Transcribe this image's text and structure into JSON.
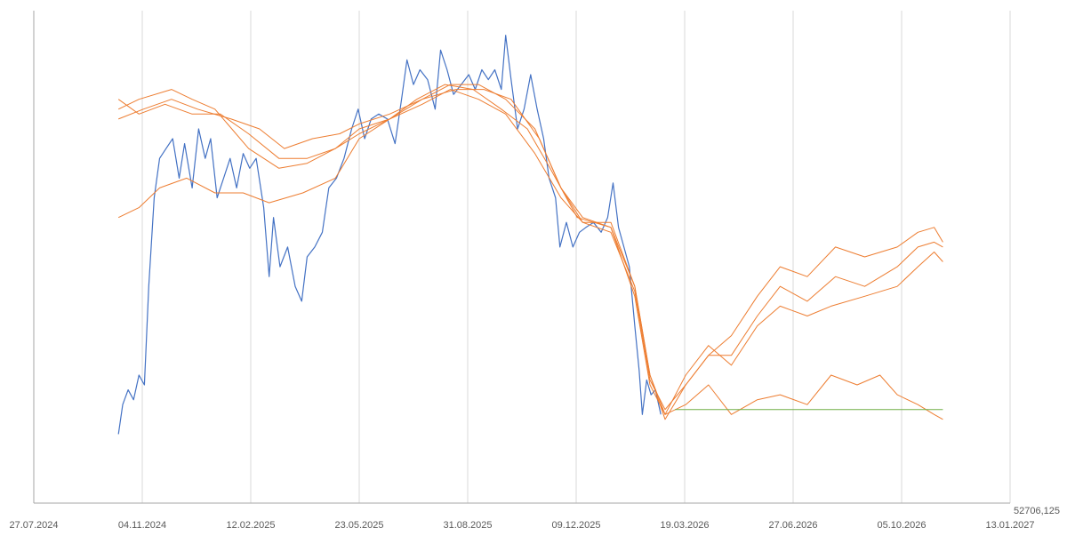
{
  "chart_data": {
    "type": "line",
    "title": "",
    "xlabel": "",
    "ylabel": "",
    "grid": "vertical",
    "legend": "none",
    "x_axis": {
      "type": "date",
      "min": "27.07.2024",
      "max": "13.01.2027",
      "ticks": [
        "27.07.2024",
        "04.11.2024",
        "12.02.2025",
        "23.05.2025",
        "31.08.2025",
        "09.12.2025",
        "19.03.2026",
        "27.06.2026",
        "05.10.2026",
        "13.01.2027"
      ],
      "extra_label": "52706,125"
    },
    "y_axis": {
      "range": [
        0,
        100
      ],
      "visible": false
    },
    "colors": {
      "historical": "#4472c4",
      "forecast": "#ed7d31",
      "flat": "#70ad47"
    },
    "series": [
      {
        "role": "historical",
        "color": "#4472c4",
        "points": [
          [
            "2024-10-13",
            14
          ],
          [
            "2024-10-17",
            20
          ],
          [
            "2024-10-22",
            23
          ],
          [
            "2024-10-27",
            21
          ],
          [
            "2024-11-01",
            26
          ],
          [
            "2024-11-06",
            24
          ],
          [
            "2024-11-10",
            44
          ],
          [
            "2024-11-15",
            62
          ],
          [
            "2024-11-20",
            70
          ],
          [
            "2024-11-26",
            72
          ],
          [
            "2024-12-02",
            74
          ],
          [
            "2024-12-08",
            66
          ],
          [
            "2024-12-13",
            73
          ],
          [
            "2024-12-20",
            64
          ],
          [
            "2024-12-26",
            76
          ],
          [
            "2025-01-01",
            70
          ],
          [
            "2025-01-06",
            74
          ],
          [
            "2025-01-12",
            62
          ],
          [
            "2025-01-18",
            66
          ],
          [
            "2025-01-24",
            70
          ],
          [
            "2025-01-30",
            64
          ],
          [
            "2025-02-05",
            71
          ],
          [
            "2025-02-11",
            68
          ],
          [
            "2025-02-17",
            70
          ],
          [
            "2025-02-24",
            60
          ],
          [
            "2025-03-01",
            46
          ],
          [
            "2025-03-05",
            58
          ],
          [
            "2025-03-11",
            48
          ],
          [
            "2025-03-18",
            52
          ],
          [
            "2025-03-25",
            44
          ],
          [
            "2025-03-31",
            41
          ],
          [
            "2025-04-05",
            50
          ],
          [
            "2025-04-12",
            52
          ],
          [
            "2025-04-19",
            55
          ],
          [
            "2025-04-25",
            64
          ],
          [
            "2025-05-02",
            66
          ],
          [
            "2025-05-09",
            70
          ],
          [
            "2025-05-16",
            76
          ],
          [
            "2025-05-22",
            80
          ],
          [
            "2025-05-28",
            74
          ],
          [
            "2025-06-03",
            78
          ],
          [
            "2025-06-10",
            79
          ],
          [
            "2025-06-18",
            78
          ],
          [
            "2025-06-25",
            73
          ],
          [
            "2025-07-01",
            82
          ],
          [
            "2025-07-06",
            90
          ],
          [
            "2025-07-12",
            85
          ],
          [
            "2025-07-18",
            88
          ],
          [
            "2025-07-25",
            86
          ],
          [
            "2025-08-01",
            80
          ],
          [
            "2025-08-06",
            92
          ],
          [
            "2025-08-12",
            88
          ],
          [
            "2025-08-18",
            83
          ],
          [
            "2025-08-25",
            85
          ],
          [
            "2025-09-01",
            87
          ],
          [
            "2025-09-07",
            84
          ],
          [
            "2025-09-13",
            88
          ],
          [
            "2025-09-19",
            86
          ],
          [
            "2025-09-25",
            88
          ],
          [
            "2025-10-01",
            84
          ],
          [
            "2025-10-05",
            95
          ],
          [
            "2025-10-10",
            86
          ],
          [
            "2025-10-16",
            76
          ],
          [
            "2025-10-22",
            80
          ],
          [
            "2025-10-28",
            87
          ],
          [
            "2025-11-03",
            80
          ],
          [
            "2025-11-09",
            74
          ],
          [
            "2025-11-14",
            66
          ],
          [
            "2025-11-20",
            62
          ],
          [
            "2025-11-24",
            52
          ],
          [
            "2025-11-30",
            57
          ],
          [
            "2025-12-06",
            52
          ],
          [
            "2025-12-12",
            55
          ],
          [
            "2025-12-18",
            56
          ],
          [
            "2025-12-25",
            57
          ],
          [
            "2026-01-01",
            55
          ],
          [
            "2026-01-07",
            58
          ],
          [
            "2026-01-12",
            65
          ],
          [
            "2026-01-17",
            56
          ],
          [
            "2026-01-22",
            52
          ],
          [
            "2026-01-27",
            48
          ],
          [
            "2026-02-01",
            36
          ],
          [
            "2026-02-05",
            27
          ],
          [
            "2026-02-08",
            18
          ],
          [
            "2026-02-12",
            25
          ],
          [
            "2026-02-16",
            22
          ],
          [
            "2026-02-20",
            23
          ],
          [
            "2026-02-25",
            18
          ]
        ]
      },
      {
        "role": "forecast",
        "color": "#ed7d31",
        "points": [
          [
            "2024-10-13",
            58
          ],
          [
            "2024-11-01",
            60
          ],
          [
            "2024-11-20",
            64
          ],
          [
            "2024-12-15",
            66
          ],
          [
            "2025-01-10",
            63
          ],
          [
            "2025-02-05",
            63
          ],
          [
            "2025-03-01",
            61
          ],
          [
            "2025-04-01",
            63
          ],
          [
            "2025-05-01",
            66
          ],
          [
            "2025-05-23",
            74
          ],
          [
            "2025-06-20",
            78
          ],
          [
            "2025-07-15",
            82
          ],
          [
            "2025-08-10",
            85
          ],
          [
            "2025-09-05",
            84
          ],
          [
            "2025-10-01",
            80
          ],
          [
            "2025-10-25",
            76
          ],
          [
            "2025-11-15",
            68
          ],
          [
            "2025-12-10",
            58
          ],
          [
            "2026-01-10",
            56
          ],
          [
            "2026-02-01",
            42
          ],
          [
            "2026-02-15",
            24
          ],
          [
            "2026-03-01",
            18
          ],
          [
            "2026-03-20",
            20
          ],
          [
            "2026-04-10",
            24
          ],
          [
            "2026-05-01",
            18
          ],
          [
            "2026-05-25",
            21
          ],
          [
            "2026-06-15",
            22
          ],
          [
            "2026-07-10",
            20
          ],
          [
            "2026-08-01",
            26
          ],
          [
            "2026-08-25",
            24
          ],
          [
            "2026-09-15",
            26
          ],
          [
            "2026-10-01",
            22
          ],
          [
            "2026-10-20",
            20
          ],
          [
            "2026-11-04",
            18
          ],
          [
            "2026-11-12",
            17
          ]
        ]
      },
      {
        "role": "forecast",
        "color": "#ed7d31",
        "points": [
          [
            "2024-10-13",
            82
          ],
          [
            "2024-11-01",
            79
          ],
          [
            "2024-11-25",
            81
          ],
          [
            "2024-12-20",
            79
          ],
          [
            "2025-01-15",
            79
          ],
          [
            "2025-02-10",
            75
          ],
          [
            "2025-03-10",
            70
          ],
          [
            "2025-04-05",
            70
          ],
          [
            "2025-05-01",
            72
          ],
          [
            "2025-05-23",
            76
          ],
          [
            "2025-06-20",
            78
          ],
          [
            "2025-07-20",
            82
          ],
          [
            "2025-08-15",
            85
          ],
          [
            "2025-09-10",
            85
          ],
          [
            "2025-10-05",
            82
          ],
          [
            "2025-11-01",
            76
          ],
          [
            "2025-11-25",
            64
          ],
          [
            "2025-12-15",
            57
          ],
          [
            "2026-01-10",
            57
          ],
          [
            "2026-02-01",
            44
          ],
          [
            "2026-02-15",
            26
          ],
          [
            "2026-03-01",
            18
          ],
          [
            "2026-03-20",
            26
          ],
          [
            "2026-04-10",
            32
          ],
          [
            "2026-05-01",
            28
          ],
          [
            "2026-05-25",
            36
          ],
          [
            "2026-06-15",
            40
          ],
          [
            "2026-07-10",
            38
          ],
          [
            "2026-08-01",
            40
          ],
          [
            "2026-09-01",
            42
          ],
          [
            "2026-10-01",
            44
          ],
          [
            "2026-10-20",
            48
          ],
          [
            "2026-11-04",
            51
          ],
          [
            "2026-11-12",
            49
          ]
        ]
      },
      {
        "role": "forecast",
        "color": "#ed7d31",
        "points": [
          [
            "2024-10-13",
            78
          ],
          [
            "2024-11-05",
            80
          ],
          [
            "2024-12-01",
            82
          ],
          [
            "2024-12-25",
            80
          ],
          [
            "2025-01-25",
            78
          ],
          [
            "2025-02-20",
            76
          ],
          [
            "2025-03-15",
            72
          ],
          [
            "2025-04-10",
            74
          ],
          [
            "2025-05-05",
            75
          ],
          [
            "2025-05-23",
            77
          ],
          [
            "2025-06-20",
            79
          ],
          [
            "2025-07-20",
            82
          ],
          [
            "2025-08-20",
            84
          ],
          [
            "2025-09-15",
            84
          ],
          [
            "2025-10-10",
            82
          ],
          [
            "2025-11-05",
            74
          ],
          [
            "2025-11-25",
            64
          ],
          [
            "2025-12-15",
            58
          ],
          [
            "2026-01-10",
            56
          ],
          [
            "2026-02-01",
            44
          ],
          [
            "2026-02-15",
            26
          ],
          [
            "2026-03-01",
            17
          ],
          [
            "2026-03-20",
            24
          ],
          [
            "2026-04-10",
            30
          ],
          [
            "2026-05-01",
            30
          ],
          [
            "2026-05-25",
            38
          ],
          [
            "2026-06-15",
            44
          ],
          [
            "2026-07-10",
            41
          ],
          [
            "2026-08-05",
            46
          ],
          [
            "2026-09-01",
            44
          ],
          [
            "2026-10-01",
            48
          ],
          [
            "2026-10-20",
            52
          ],
          [
            "2026-11-04",
            53
          ],
          [
            "2026-11-12",
            52
          ]
        ]
      },
      {
        "role": "forecast",
        "color": "#ed7d31",
        "points": [
          [
            "2024-10-13",
            80
          ],
          [
            "2024-11-01",
            82
          ],
          [
            "2024-12-01",
            84
          ],
          [
            "2024-12-20",
            82
          ],
          [
            "2025-01-10",
            80
          ],
          [
            "2025-02-10",
            72
          ],
          [
            "2025-03-10",
            68
          ],
          [
            "2025-04-05",
            69
          ],
          [
            "2025-05-01",
            72
          ],
          [
            "2025-05-23",
            75
          ],
          [
            "2025-06-20",
            78
          ],
          [
            "2025-07-20",
            81
          ],
          [
            "2025-08-15",
            84
          ],
          [
            "2025-09-10",
            82
          ],
          [
            "2025-10-05",
            79
          ],
          [
            "2025-11-01",
            71
          ],
          [
            "2025-11-25",
            62
          ],
          [
            "2025-12-15",
            57
          ],
          [
            "2026-01-10",
            55
          ],
          [
            "2026-02-01",
            43
          ],
          [
            "2026-02-15",
            25
          ],
          [
            "2026-03-01",
            19
          ],
          [
            "2026-03-20",
            24
          ],
          [
            "2026-04-10",
            30
          ],
          [
            "2026-05-01",
            34
          ],
          [
            "2026-05-25",
            42
          ],
          [
            "2026-06-15",
            48
          ],
          [
            "2026-07-10",
            46
          ],
          [
            "2026-08-05",
            52
          ],
          [
            "2026-09-01",
            50
          ],
          [
            "2026-10-01",
            52
          ],
          [
            "2026-10-20",
            55
          ],
          [
            "2026-11-04",
            56
          ],
          [
            "2026-11-12",
            53
          ]
        ]
      },
      {
        "role": "flat",
        "color": "#70ad47",
        "points": [
          [
            "2026-03-10",
            19
          ],
          [
            "2026-11-12",
            19
          ]
        ]
      }
    ]
  }
}
